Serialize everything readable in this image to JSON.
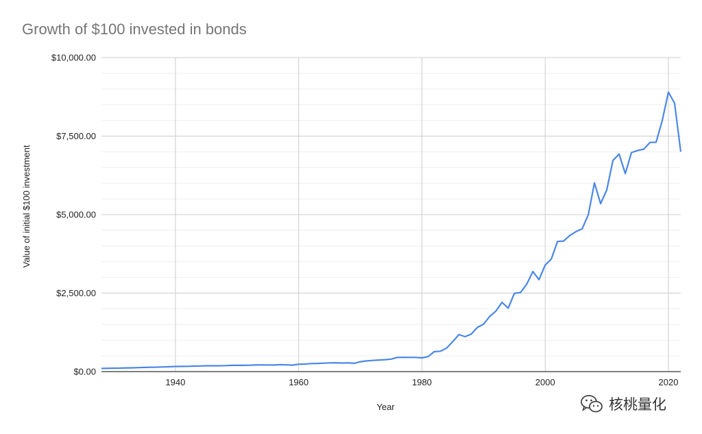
{
  "chart_data": {
    "type": "line",
    "title": "Growth of $100 invested in bonds",
    "xlabel": "Year",
    "ylabel": "Value of initial $100 investment",
    "xlim": [
      1928,
      2022
    ],
    "ylim": [
      0,
      10000
    ],
    "x_ticks": [
      "1940",
      "1960",
      "1980",
      "2000",
      "2020"
    ],
    "y_ticks": [
      "$0.00",
      "$2,500.00",
      "$5,000.00",
      "$7,500.00",
      "$10,000.00"
    ],
    "grid": true,
    "legend": "none",
    "line_color": "#4a86e8",
    "series": [
      {
        "x": [
          1928,
          1929,
          1930,
          1931,
          1932,
          1933,
          1934,
          1935,
          1936,
          1937,
          1938,
          1939,
          1940,
          1941,
          1942,
          1943,
          1944,
          1945,
          1946,
          1947,
          1948,
          1949,
          1950,
          1951,
          1952,
          1953,
          1954,
          1955,
          1956,
          1957,
          1958,
          1959,
          1960,
          1961,
          1962,
          1963,
          1964,
          1965,
          1966,
          1967,
          1968,
          1969,
          1970,
          1971,
          1972,
          1973,
          1974,
          1975,
          1976,
          1977,
          1978,
          1979,
          1980,
          1981,
          1982,
          1983,
          1984,
          1985,
          1986,
          1987,
          1988,
          1989,
          1990,
          1991,
          1992,
          1993,
          1994,
          1995,
          1996,
          1997,
          1998,
          1999,
          2000,
          2001,
          2002,
          2003,
          2004,
          2005,
          2006,
          2007,
          2008,
          2009,
          2010,
          2011,
          2012,
          2013,
          2014,
          2015,
          2016,
          2017,
          2018,
          2019,
          2020,
          2021,
          2022
        ],
        "values": [
          100,
          104,
          109,
          112,
          117,
          119,
          127,
          133,
          139,
          142,
          148,
          154,
          163,
          165,
          169,
          174,
          178,
          186,
          186,
          186,
          191,
          199,
          199,
          198,
          202,
          209,
          214,
          211,
          209,
          220,
          214,
          207,
          235,
          240,
          255,
          259,
          269,
          277,
          282,
          272,
          280,
          265,
          314,
          341,
          356,
          368,
          381,
          397,
          451,
          455,
          452,
          452,
          436,
          477,
          635,
          649,
          748,
          954,
          1180,
          1114,
          1194,
          1408,
          1509,
          1758,
          1925,
          2205,
          2021,
          2492,
          2519,
          2783,
          3188,
          2929,
          3390,
          3584,
          4145,
          4158,
          4336,
          4458,
          4546,
          4998,
          6009,
          5349,
          5787,
          6728,
          6926,
          6305,
          6976,
          7040,
          7085,
          7300,
          7303,
          7993,
          8900,
          8548,
          7000
        ]
      }
    ]
  },
  "watermark": {
    "icon": "wechat-icon",
    "text": "核桃量化"
  }
}
